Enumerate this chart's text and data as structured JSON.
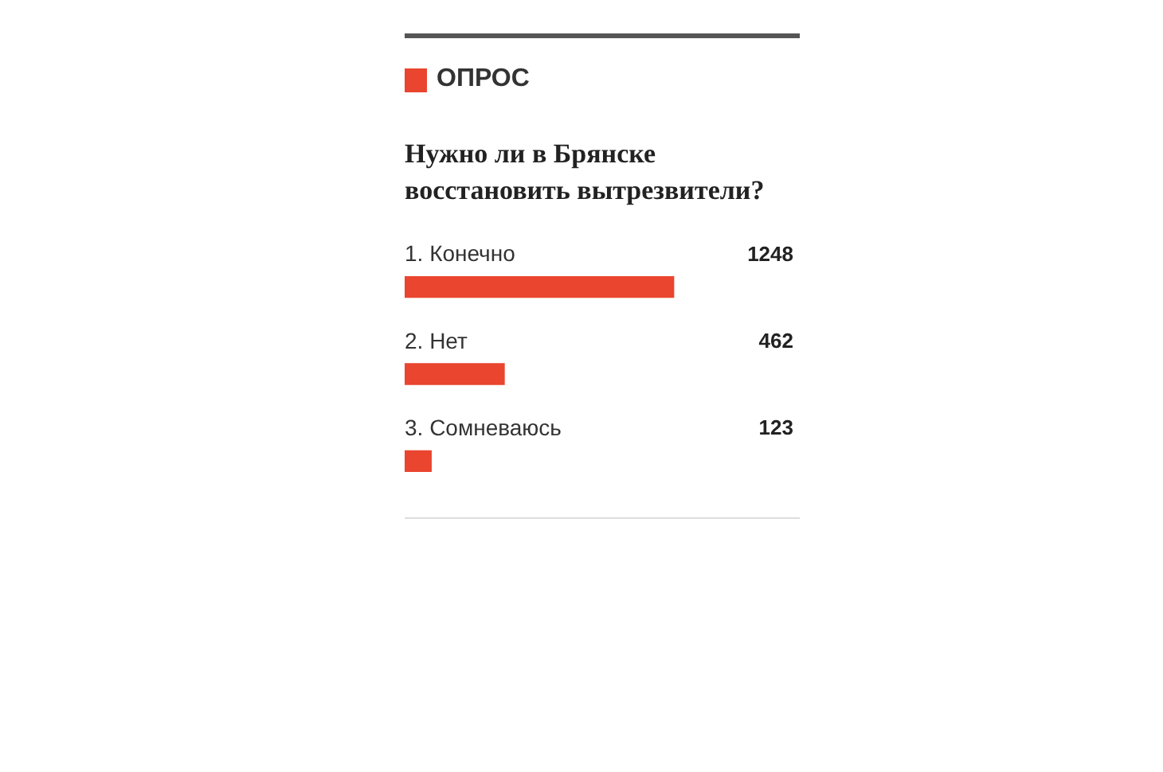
{
  "chart_data": {
    "type": "bar",
    "orientation": "horizontal",
    "title": "ОПРОС",
    "subtitle": "Нужно ли в Брянске восстановить вытрезвители?",
    "categories": [
      "1. Конечно",
      "2. Нет",
      "3. Сомневаюсь"
    ],
    "values": [
      1248,
      462,
      123
    ],
    "color": "#e9452f",
    "xlim": [
      0,
      1833
    ],
    "data_labels": true,
    "tick_labels": "y"
  }
}
